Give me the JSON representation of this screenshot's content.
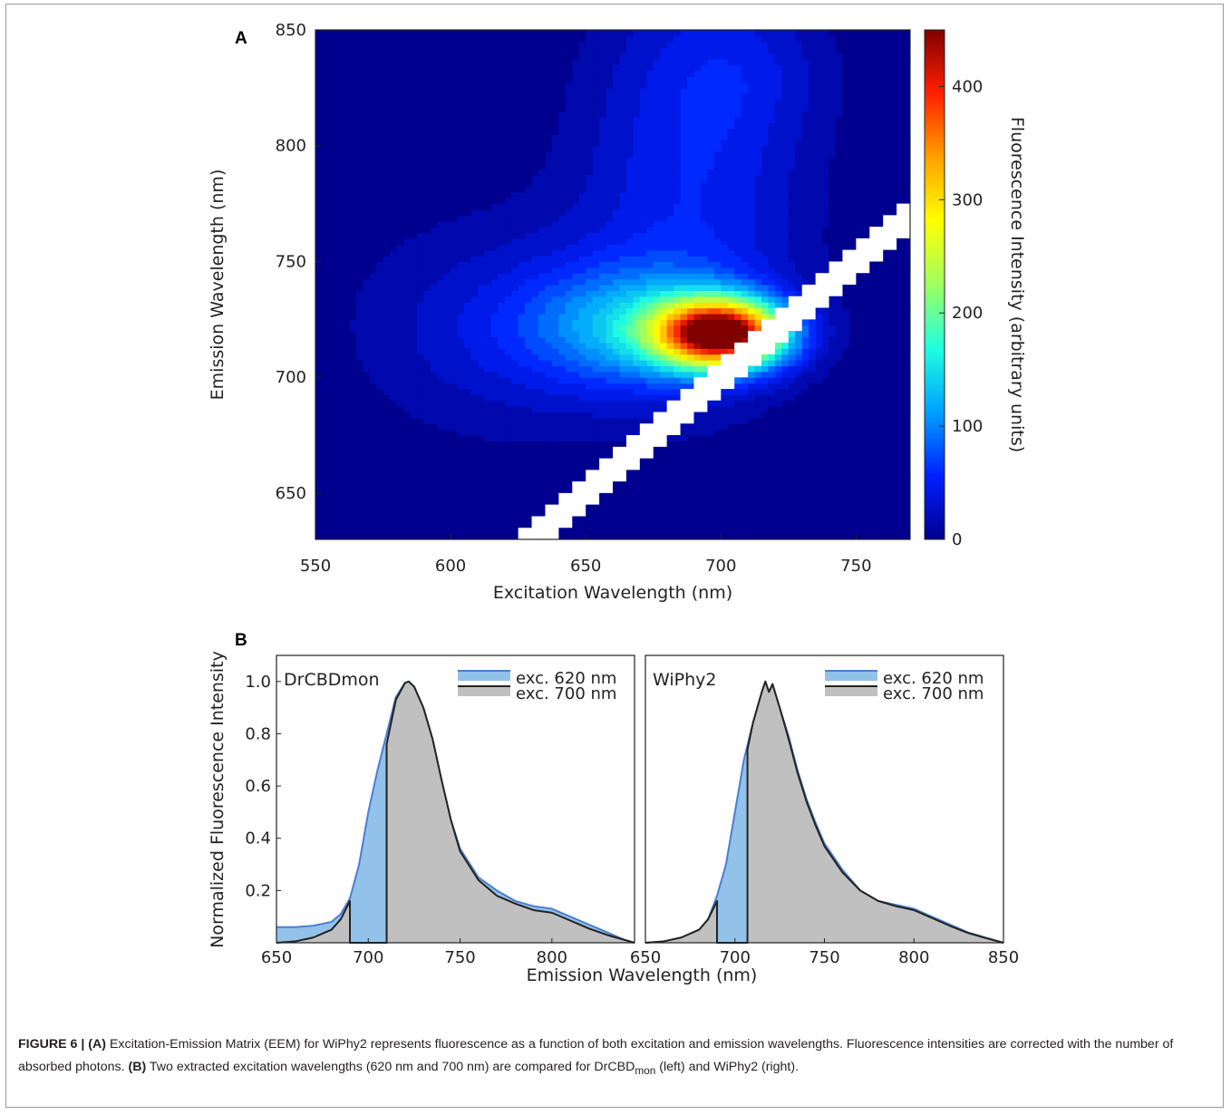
{
  "caption": {
    "label": "FIGURE 6 |",
    "a_tag": "(A)",
    "a_text": " Excitation-Emission Matrix (EEM) for WiPhy2 represents fluorescence as a function of both excitation and emission wavelengths. Fluorescence intensities are corrected with the number of absorbed photons. ",
    "b_tag": "(B)",
    "b_text_1": " Two extracted excitation wavelengths (620 nm and 700 nm) are compared for DrCBD",
    "b_sub": "mon",
    "b_text_2": " (left) and WiPhy2 (right)."
  },
  "chart_data": [
    {
      "type": "heatmap",
      "panel_label": "A",
      "xlabel": "Excitation Wavelength (nm)",
      "ylabel": "Emission Wavelength (nm)",
      "colorbar_label": "Fluorescence Intensity (arbitrary units)",
      "xlim": [
        550,
        770
      ],
      "ylim": [
        630,
        850
      ],
      "xticks": [
        550,
        600,
        650,
        700,
        750
      ],
      "yticks": [
        650,
        700,
        750,
        800,
        850
      ],
      "clim": [
        0,
        450
      ],
      "colorbar_ticks": [
        0,
        100,
        200,
        300,
        400
      ],
      "colormap": [
        "#00008f",
        "#0020ff",
        "#00a0ff",
        "#20ffdf",
        "#9fff60",
        "#ffff00",
        "#ffa000",
        "#ff2000",
        "#800000"
      ],
      "peak": {
        "excitation": 700,
        "emission": 719,
        "intensity": 450
      },
      "scatter_band_excitation_offset": [
        0,
        15
      ]
    },
    {
      "type": "area",
      "panel_label": "B",
      "title": "DrCBDmon",
      "xlabel": "Emission Wavelength (nm)",
      "ylabel": "Normalized Fluorescence Intensity",
      "xlim": [
        650,
        845
      ],
      "ylim": [
        0,
        1.1
      ],
      "xticks": [
        650,
        700,
        750,
        800
      ],
      "yticks": [
        0.2,
        0.4,
        0.6,
        0.8,
        1.0
      ],
      "series": [
        {
          "name": "exc. 620 nm",
          "color": "#4a7fd0",
          "fill": "#92c2ea",
          "x": [
            650,
            660,
            670,
            680,
            685,
            690,
            695,
            700,
            705,
            710,
            715,
            720,
            722,
            725,
            730,
            735,
            740,
            745,
            750,
            760,
            770,
            780,
            790,
            800,
            810,
            820,
            830,
            840,
            845
          ],
          "y": [
            0.06,
            0.06,
            0.065,
            0.08,
            0.11,
            0.17,
            0.3,
            0.5,
            0.66,
            0.8,
            0.94,
            0.995,
            1.0,
            0.98,
            0.9,
            0.78,
            0.62,
            0.47,
            0.36,
            0.25,
            0.2,
            0.16,
            0.14,
            0.13,
            0.1,
            0.07,
            0.04,
            0.01,
            0.0
          ]
        },
        {
          "name": "exc. 700 nm",
          "color": "#222222",
          "fill": "#c0c0c0",
          "x": [
            650,
            660,
            670,
            680,
            685,
            690,
            690,
            710,
            710,
            715,
            720,
            722,
            725,
            730,
            735,
            740,
            745,
            750,
            760,
            770,
            780,
            790,
            800,
            810,
            820,
            830,
            840,
            845
          ],
          "y": [
            0.0,
            0.005,
            0.02,
            0.05,
            0.09,
            0.16,
            0.0,
            0.0,
            0.76,
            0.93,
            0.995,
            1.0,
            0.98,
            0.9,
            0.78,
            0.62,
            0.47,
            0.35,
            0.24,
            0.18,
            0.15,
            0.125,
            0.115,
            0.085,
            0.055,
            0.03,
            0.01,
            0.0
          ]
        }
      ]
    },
    {
      "type": "area",
      "title": "WiPhy2",
      "xlabel": "Emission Wavelength (nm)",
      "xlim": [
        650,
        850
      ],
      "ylim": [
        0,
        1.1
      ],
      "xticks": [
        650,
        700,
        750,
        800,
        850
      ],
      "series": [
        {
          "name": "exc. 620 nm",
          "color": "#4a7fd0",
          "fill": "#92c2ea",
          "x": [
            650,
            660,
            670,
            680,
            685,
            690,
            695,
            700,
            705,
            710,
            715,
            717,
            719,
            721,
            725,
            730,
            735,
            740,
            745,
            750,
            760,
            770,
            780,
            790,
            800,
            810,
            820,
            830,
            840,
            850
          ],
          "y": [
            0.0,
            0.005,
            0.02,
            0.05,
            0.09,
            0.18,
            0.3,
            0.5,
            0.7,
            0.84,
            0.96,
            1.0,
            0.96,
            0.99,
            0.9,
            0.79,
            0.66,
            0.55,
            0.46,
            0.38,
            0.28,
            0.2,
            0.16,
            0.145,
            0.13,
            0.1,
            0.07,
            0.04,
            0.02,
            0.0
          ]
        },
        {
          "name": "exc. 700 nm",
          "color": "#222222",
          "fill": "#c0c0c0",
          "x": [
            650,
            660,
            670,
            680,
            685,
            690,
            690,
            707,
            707,
            710,
            715,
            717,
            719,
            721,
            725,
            730,
            735,
            740,
            745,
            750,
            760,
            770,
            780,
            790,
            800,
            810,
            820,
            830,
            840,
            850
          ],
          "y": [
            0.0,
            0.005,
            0.02,
            0.05,
            0.09,
            0.16,
            0.0,
            0.0,
            0.74,
            0.84,
            0.96,
            1.0,
            0.96,
            0.99,
            0.9,
            0.78,
            0.65,
            0.54,
            0.45,
            0.37,
            0.27,
            0.2,
            0.16,
            0.14,
            0.125,
            0.095,
            0.065,
            0.038,
            0.018,
            0.0
          ]
        }
      ]
    }
  ]
}
